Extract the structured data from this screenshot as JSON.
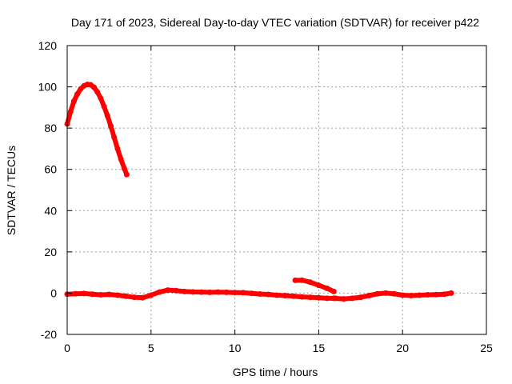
{
  "chart_data": {
    "type": "line",
    "title": "Day 171 of 2023, Sidereal Day-to-day VTEC variation (SDTVAR) for receiver p422",
    "xlabel": "GPS time / hours",
    "ylabel": "SDTVAR / TECUs",
    "xlim": [
      0,
      25
    ],
    "ylim": [
      -20,
      120
    ],
    "xticks": [
      0,
      5,
      10,
      15,
      20,
      25
    ],
    "yticks": [
      -20,
      0,
      20,
      40,
      60,
      80,
      100,
      120
    ],
    "grid": true,
    "series": [
      {
        "name": "early-arc",
        "color": "#ff0000",
        "x": [
          0.0,
          0.2,
          0.4,
          0.6,
          0.8,
          1.0,
          1.2,
          1.4,
          1.6,
          1.8,
          2.0,
          2.2,
          2.4,
          2.6,
          2.8,
          3.0,
          3.2,
          3.4,
          3.55
        ],
        "y": [
          82,
          88,
          93,
          96.5,
          99,
          100.5,
          101.2,
          101,
          99.8,
          97.5,
          94.5,
          90.5,
          86,
          81,
          75.5,
          70,
          65,
          60.5,
          57.5
        ]
      },
      {
        "name": "baseline-1",
        "color": "#ff0000",
        "x": [
          0.0,
          0.5,
          1.0,
          1.5,
          2.0,
          2.5,
          3.0,
          3.5,
          4.0,
          4.5,
          5.0,
          5.5,
          6.0,
          6.5,
          7.0,
          7.5,
          8.0,
          8.5,
          9.0,
          9.5,
          10.0,
          10.5,
          11.0,
          11.5,
          12.0,
          12.5,
          13.0,
          13.5,
          14.0,
          14.5,
          15.0,
          15.5,
          16.0
        ],
        "y": [
          -0.5,
          -0.3,
          -0.2,
          -0.5,
          -0.8,
          -0.6,
          -1.0,
          -1.5,
          -2.0,
          -2.2,
          -1.0,
          0.5,
          1.5,
          1.2,
          0.8,
          0.6,
          0.5,
          0.4,
          0.5,
          0.4,
          0.3,
          0.2,
          -0.1,
          -0.4,
          -0.6,
          -1.0,
          -1.2,
          -1.5,
          -1.8,
          -2.0,
          -2.2,
          -2.5,
          -2.5
        ]
      },
      {
        "name": "mid-arc",
        "color": "#ff0000",
        "x": [
          13.6,
          14.0,
          14.5,
          15.0,
          15.5,
          15.9
        ],
        "y": [
          6.2,
          6.3,
          5.3,
          3.8,
          2.3,
          0.8
        ]
      },
      {
        "name": "baseline-2",
        "color": "#ff0000",
        "x": [
          15.9,
          16.5,
          17.0,
          17.5,
          18.0,
          18.5,
          19.0,
          19.5,
          20.0,
          20.5,
          21.0,
          21.5,
          22.0,
          22.5,
          22.9
        ],
        "y": [
          -2.5,
          -2.8,
          -2.5,
          -2.0,
          -1.2,
          -0.3,
          0.0,
          -0.3,
          -1.0,
          -1.2,
          -1.0,
          -0.8,
          -0.7,
          -0.5,
          0.0
        ]
      }
    ]
  }
}
